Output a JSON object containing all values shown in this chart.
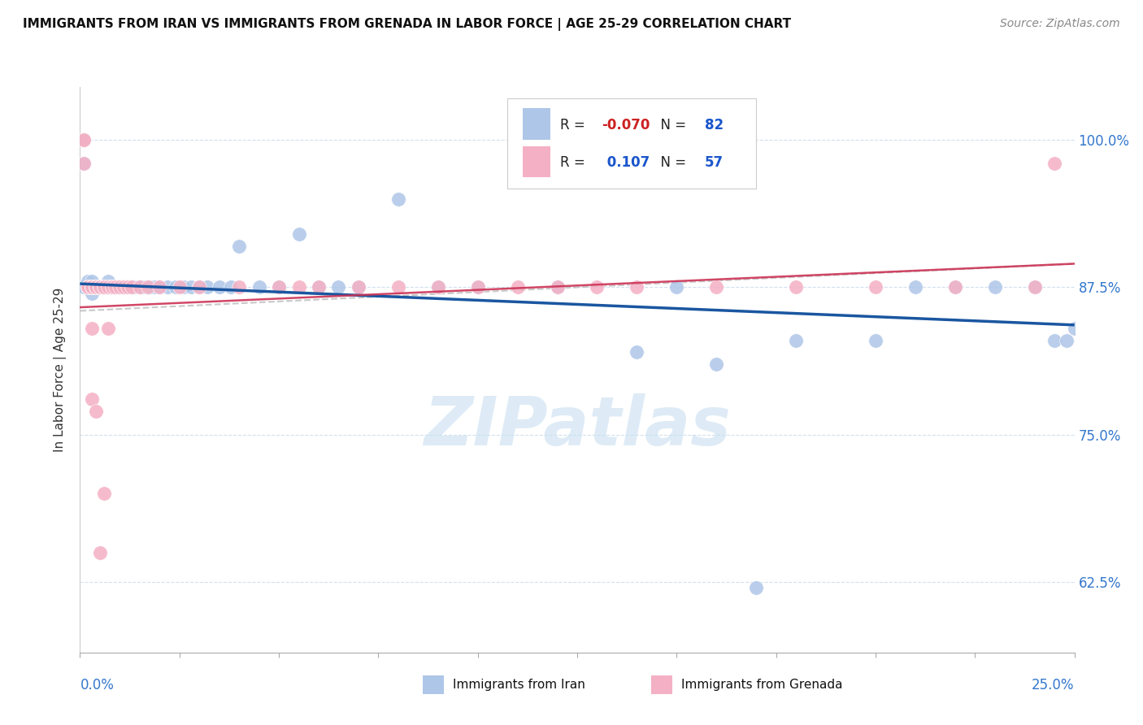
{
  "title": "IMMIGRANTS FROM IRAN VS IMMIGRANTS FROM GRENADA IN LABOR FORCE | AGE 25-29 CORRELATION CHART",
  "source": "Source: ZipAtlas.com",
  "ylabel": "In Labor Force | Age 25-29",
  "legend_iran": {
    "R": -0.07,
    "N": 82,
    "color": "#aec6e8",
    "line_color": "#1a56a0"
  },
  "legend_grenada": {
    "R": 0.107,
    "N": 57,
    "color": "#f4b0c4",
    "line_color": "#cc3355"
  },
  "yticks": [
    0.625,
    0.75,
    0.875,
    1.0
  ],
  "ytick_labels": [
    "62.5%",
    "75.0%",
    "87.5%",
    "100.0%"
  ],
  "xmin": 0.0,
  "xmax": 0.25,
  "ymin": 0.565,
  "ymax": 1.045,
  "background_color": "#ffffff",
  "grid_color": "#ccddee",
  "watermark": "ZIPatlas",
  "watermark_color": "#c8dff0",
  "iran_x": [
    0.001,
    0.001,
    0.001,
    0.002,
    0.002,
    0.002,
    0.002,
    0.003,
    0.003,
    0.003,
    0.003,
    0.003,
    0.004,
    0.004,
    0.004,
    0.004,
    0.004,
    0.005,
    0.005,
    0.005,
    0.005,
    0.005,
    0.006,
    0.006,
    0.006,
    0.007,
    0.007,
    0.007,
    0.008,
    0.008,
    0.008,
    0.009,
    0.009,
    0.01,
    0.01,
    0.01,
    0.011,
    0.011,
    0.012,
    0.012,
    0.013,
    0.013,
    0.014,
    0.015,
    0.015,
    0.016,
    0.017,
    0.018,
    0.019,
    0.02,
    0.022,
    0.024,
    0.026,
    0.028,
    0.03,
    0.032,
    0.035,
    0.038,
    0.04,
    0.045,
    0.05,
    0.055,
    0.06,
    0.065,
    0.07,
    0.08,
    0.09,
    0.1,
    0.12,
    0.14,
    0.16,
    0.18,
    0.2,
    0.21,
    0.22,
    0.23,
    0.24,
    0.245,
    0.248,
    0.25,
    0.15,
    0.17
  ],
  "iran_y": [
    1.0,
    0.98,
    0.875,
    0.875,
    0.88,
    0.875,
    0.875,
    0.875,
    0.875,
    0.88,
    0.875,
    0.87,
    0.875,
    0.875,
    0.875,
    0.875,
    0.875,
    0.875,
    0.875,
    0.875,
    0.875,
    0.875,
    0.875,
    0.875,
    0.875,
    0.875,
    0.88,
    0.875,
    0.875,
    0.875,
    0.875,
    0.875,
    0.875,
    0.875,
    0.875,
    0.875,
    0.875,
    0.875,
    0.875,
    0.875,
    0.875,
    0.875,
    0.875,
    0.875,
    0.875,
    0.875,
    0.875,
    0.875,
    0.875,
    0.875,
    0.875,
    0.875,
    0.875,
    0.875,
    0.875,
    0.875,
    0.875,
    0.875,
    0.91,
    0.875,
    0.875,
    0.92,
    0.875,
    0.875,
    0.875,
    0.95,
    0.875,
    0.875,
    0.875,
    0.82,
    0.81,
    0.83,
    0.83,
    0.875,
    0.875,
    0.875,
    0.875,
    0.83,
    0.83,
    0.84,
    0.875,
    0.62
  ],
  "grenada_x": [
    0.001,
    0.001,
    0.001,
    0.002,
    0.002,
    0.002,
    0.003,
    0.003,
    0.003,
    0.003,
    0.003,
    0.003,
    0.004,
    0.004,
    0.004,
    0.004,
    0.004,
    0.005,
    0.005,
    0.005,
    0.005,
    0.006,
    0.006,
    0.006,
    0.006,
    0.007,
    0.007,
    0.008,
    0.008,
    0.009,
    0.01,
    0.011,
    0.012,
    0.013,
    0.015,
    0.017,
    0.02,
    0.025,
    0.03,
    0.04,
    0.05,
    0.055,
    0.06,
    0.07,
    0.08,
    0.09,
    0.1,
    0.11,
    0.12,
    0.13,
    0.14,
    0.16,
    0.18,
    0.2,
    0.22,
    0.24,
    0.245
  ],
  "grenada_y": [
    1.0,
    0.98,
    1.0,
    0.875,
    0.875,
    0.875,
    0.875,
    0.875,
    0.84,
    0.875,
    0.875,
    0.78,
    0.875,
    0.875,
    0.875,
    0.875,
    0.77,
    0.875,
    0.875,
    0.875,
    0.65,
    0.875,
    0.875,
    0.875,
    0.7,
    0.875,
    0.84,
    0.875,
    0.875,
    0.875,
    0.875,
    0.875,
    0.875,
    0.875,
    0.875,
    0.875,
    0.875,
    0.875,
    0.875,
    0.875,
    0.875,
    0.875,
    0.875,
    0.875,
    0.875,
    0.875,
    0.875,
    0.875,
    0.875,
    0.875,
    0.875,
    0.875,
    0.875,
    0.875,
    0.875,
    0.875,
    0.98
  ]
}
